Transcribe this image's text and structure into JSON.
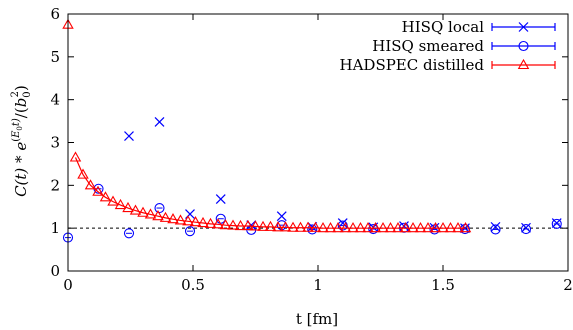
{
  "chart_data": {
    "type": "scatter",
    "xlabel": "t [fm]",
    "ylabel": "C(t) * e^(E0 t) / (b0^2)",
    "ylabel_parts": {
      "main": "C(t) * e",
      "sup_open": "(",
      "sup_E": "E",
      "sup_sub": "0",
      "sup_t": "t)",
      "slash": "/(",
      "b": "b",
      "b_sub": "0",
      "b_sup": "2",
      "close": ")"
    },
    "xlim": [
      0,
      2
    ],
    "ylim": [
      0,
      6
    ],
    "xticks": [
      0,
      0.5,
      1,
      1.5,
      2
    ],
    "xtick_labels": [
      "0",
      "0.5",
      "1",
      "1.5",
      "2"
    ],
    "yticks": [
      0,
      1,
      2,
      3,
      4,
      5,
      6
    ],
    "ytick_labels": [
      "0",
      "1",
      "2",
      "3",
      "4",
      "5",
      "6"
    ],
    "reference_line_y": 1,
    "legend_position": "top-right",
    "series": [
      {
        "name": "HISQ local",
        "marker": "x",
        "color": "#0000ff",
        "points": [
          [
            0.244,
            3.15
          ],
          [
            0.366,
            3.48
          ],
          [
            0.488,
            1.33
          ],
          [
            0.611,
            1.68
          ],
          [
            0.733,
            1.07
          ],
          [
            0.855,
            1.28
          ],
          [
            0.977,
            1.03
          ],
          [
            1.099,
            1.12
          ],
          [
            1.221,
            1.02
          ],
          [
            1.344,
            1.05
          ],
          [
            1.466,
            1.01
          ],
          [
            1.588,
            1.0
          ],
          [
            1.71,
            1.03
          ],
          [
            1.832,
            1.01
          ],
          [
            1.955,
            1.12
          ]
        ]
      },
      {
        "name": "HISQ smeared",
        "marker": "circle",
        "color": "#0000ff",
        "points": [
          [
            0.0,
            0.78
          ],
          [
            0.122,
            1.92
          ],
          [
            0.244,
            0.88
          ],
          [
            0.366,
            1.47
          ],
          [
            0.488,
            0.93
          ],
          [
            0.611,
            1.22
          ],
          [
            0.733,
            0.96
          ],
          [
            0.855,
            1.07
          ],
          [
            0.977,
            0.97
          ],
          [
            1.099,
            1.06
          ],
          [
            1.221,
            0.98
          ],
          [
            1.344,
            1.01
          ],
          [
            1.466,
            0.97
          ],
          [
            1.588,
            0.98
          ],
          [
            1.71,
            0.97
          ],
          [
            1.832,
            0.98
          ],
          [
            1.955,
            1.1
          ]
        ]
      },
      {
        "name": "HADSPEC distilled",
        "marker": "triangle",
        "color": "#ff0000",
        "line": true,
        "points": [
          [
            0.0,
            5.75
          ],
          [
            0.03,
            2.65
          ],
          [
            0.06,
            2.25
          ],
          [
            0.09,
            2.0
          ],
          [
            0.12,
            1.85
          ],
          [
            0.15,
            1.72
          ],
          [
            0.18,
            1.62
          ],
          [
            0.21,
            1.54
          ],
          [
            0.24,
            1.47
          ],
          [
            0.27,
            1.41
          ],
          [
            0.3,
            1.36
          ],
          [
            0.33,
            1.32
          ],
          [
            0.36,
            1.28
          ],
          [
            0.39,
            1.24
          ],
          [
            0.42,
            1.21
          ],
          [
            0.45,
            1.18
          ],
          [
            0.48,
            1.16
          ],
          [
            0.51,
            1.14
          ],
          [
            0.54,
            1.12
          ],
          [
            0.57,
            1.1
          ],
          [
            0.6,
            1.09
          ],
          [
            0.63,
            1.07
          ],
          [
            0.66,
            1.06
          ],
          [
            0.69,
            1.05
          ],
          [
            0.72,
            1.05
          ],
          [
            0.75,
            1.04
          ],
          [
            0.78,
            1.03
          ],
          [
            0.81,
            1.03
          ],
          [
            0.84,
            1.02
          ],
          [
            0.87,
            1.02
          ],
          [
            0.9,
            1.01
          ],
          [
            0.93,
            1.01
          ],
          [
            0.96,
            1.01
          ],
          [
            0.99,
            1.01
          ],
          [
            1.02,
            1.0
          ],
          [
            1.05,
            1.0
          ],
          [
            1.08,
            1.0
          ],
          [
            1.11,
            1.0
          ],
          [
            1.14,
            1.0
          ],
          [
            1.17,
            1.0
          ],
          [
            1.2,
            1.0
          ],
          [
            1.23,
            1.0
          ],
          [
            1.26,
            1.0
          ],
          [
            1.29,
            1.0
          ],
          [
            1.32,
            1.0
          ],
          [
            1.35,
            1.0
          ],
          [
            1.38,
            1.0
          ],
          [
            1.41,
            1.0
          ],
          [
            1.44,
            1.0
          ],
          [
            1.47,
            1.0
          ],
          [
            1.5,
            1.0
          ],
          [
            1.53,
            1.0
          ],
          [
            1.56,
            1.0
          ],
          [
            1.59,
            1.0
          ]
        ]
      }
    ]
  }
}
